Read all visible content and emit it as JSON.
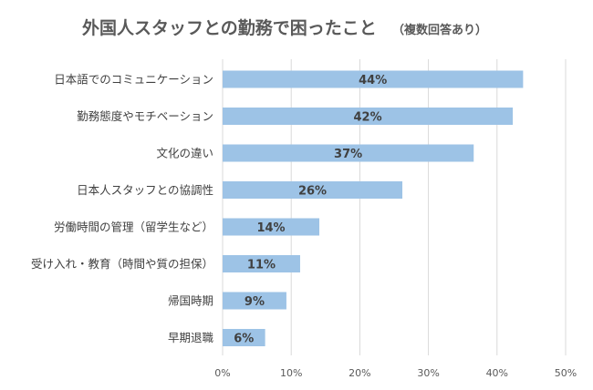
{
  "chart_data": {
    "type": "bar",
    "orientation": "horizontal",
    "title": "外国人スタッフとの勤務で困ったこと",
    "subtitle": "（複数回答あり）",
    "categories": [
      "日本語でのコミュニケーション",
      "勤務態度やモチベーション",
      "文化の違い",
      "日本人スタッフとの協調性",
      "労働時間の管理（留学生など）",
      "受け入れ・教育（時間や質の担保）",
      "帰国時期",
      "早期退職"
    ],
    "values": [
      44,
      42,
      37,
      26,
      14,
      11,
      9,
      6
    ],
    "bar_values_exact": [
      43.8,
      42.3,
      36.6,
      26.2,
      14.1,
      11.3,
      9.3,
      6.2
    ],
    "data_labels": [
      "44%",
      "42%",
      "37%",
      "26%",
      "14%",
      "11%",
      "9%",
      "6%"
    ],
    "xlim": [
      0,
      50
    ],
    "xticks": [
      0,
      10,
      20,
      30,
      40,
      50
    ],
    "xtick_labels": [
      "0%",
      "10%",
      "20%",
      "30%",
      "40%",
      "50%"
    ],
    "xlabel": "",
    "ylabel": "",
    "grid": true,
    "legend": "none",
    "colors": {
      "bar": "#9DC3E6",
      "grid": "#D9D9D9",
      "text": "#404040"
    }
  }
}
